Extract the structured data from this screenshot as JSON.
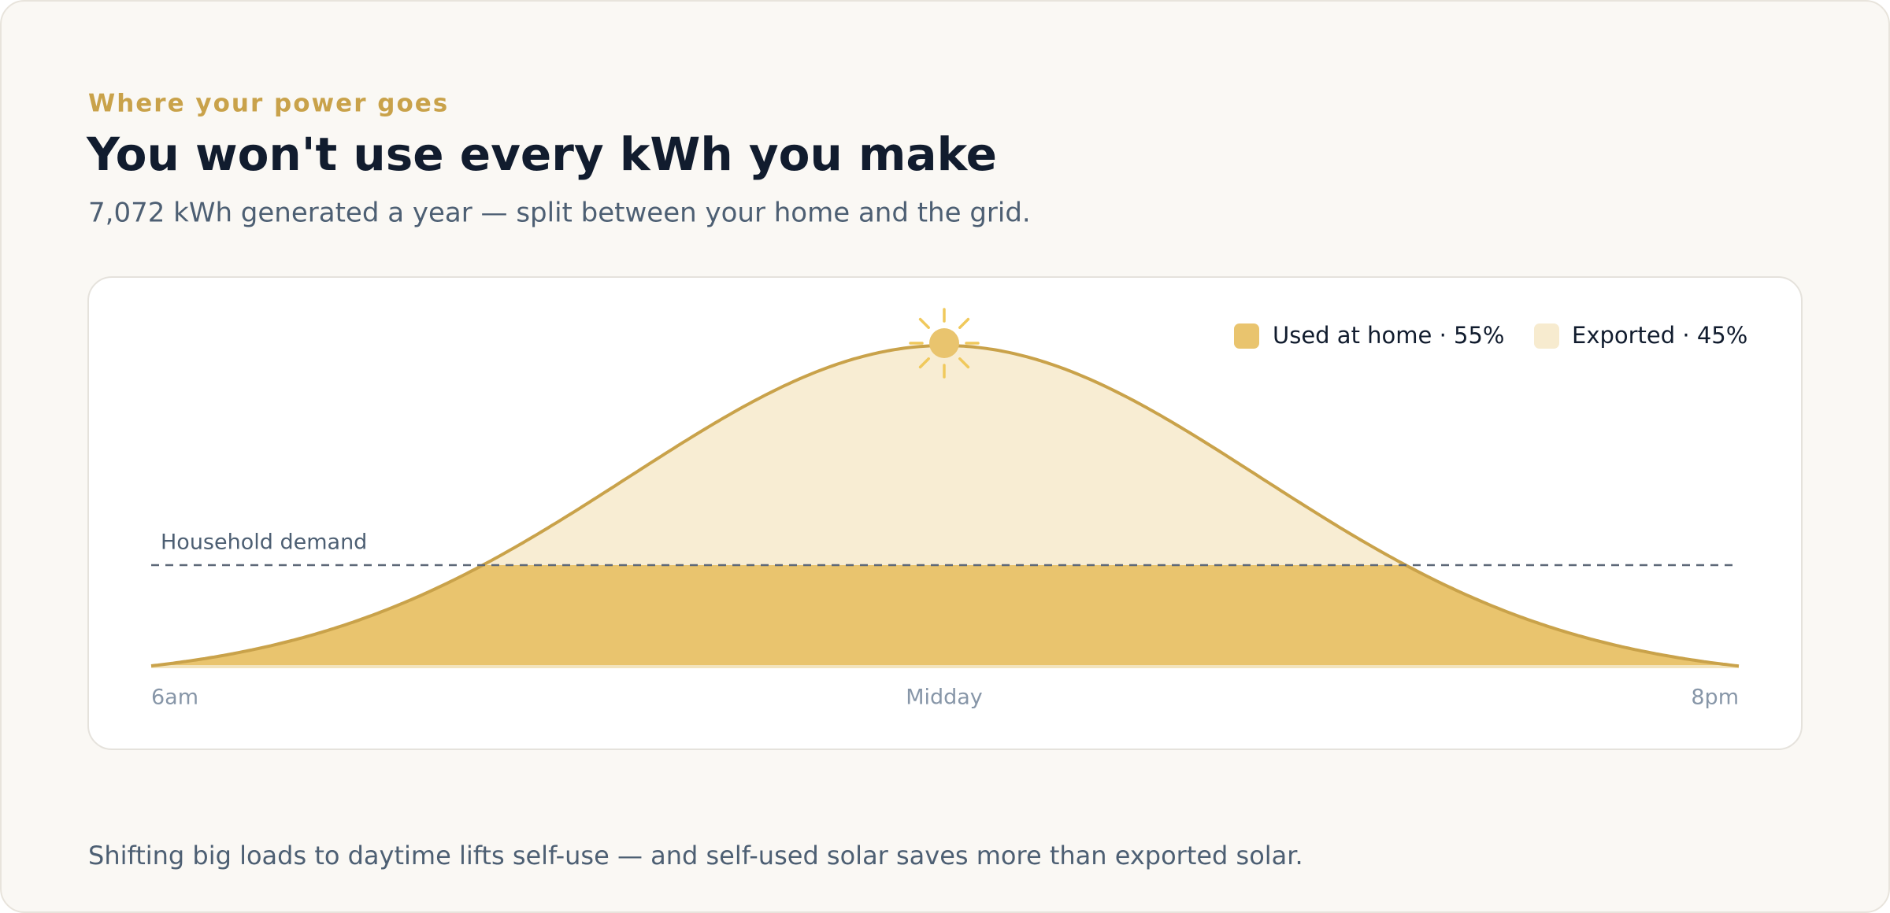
{
  "eyebrow": "Where your power goes",
  "title": "You won't use every kWh you make",
  "subtitle": "7,072 kWh generated a year — split between your home and the grid.",
  "chart": {
    "legend": [
      "Used at home · 55%",
      "Exported · 45%"
    ],
    "demand_label": "Household demand",
    "x_labels": [
      "6am",
      "Midday",
      "8pm"
    ]
  },
  "footer": "Shifting big loads to daytime lifts self-use — and self-used solar saves more than exported solar."
}
